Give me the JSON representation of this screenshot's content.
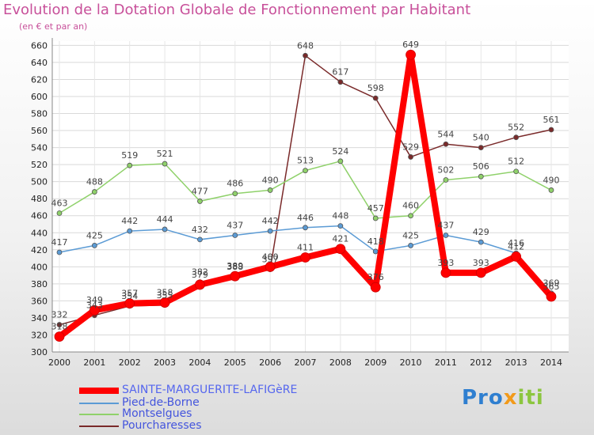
{
  "chart_data": {
    "type": "line",
    "title": "Evolution de la Dotation Globale de Fonctionnement par Habitant",
    "subtitle": "(en € et par an)",
    "x": [
      "2000",
      "2001",
      "2002",
      "2003",
      "2004",
      "2005",
      "2006",
      "2007",
      "2008",
      "2009",
      "2010",
      "2011",
      "2012",
      "2013",
      "2014"
    ],
    "yticks": [
      300,
      320,
      340,
      360,
      380,
      400,
      420,
      440,
      460,
      480,
      500,
      520,
      540,
      560,
      580,
      600,
      620,
      640,
      660
    ],
    "ylim": [
      300,
      665
    ],
    "grid": true,
    "legend_position": "bottom-left",
    "series": [
      {
        "name": "SAINTE-MARGUERITE-LAFIGèRE",
        "color": "#ff0000",
        "values": [
          318,
          349,
          357,
          358,
          379,
          389,
          400,
          411,
          421,
          376,
          649,
          393,
          393,
          412,
          365
        ],
        "labels": [
          "318",
          "349",
          "357",
          "358",
          "379",
          "389",
          "400",
          "411",
          "421",
          "376",
          "649",
          "393",
          "393",
          "412",
          "365"
        ]
      },
      {
        "name": "Pied-de-Borne",
        "color": "#5b9bd5",
        "values": [
          417,
          425,
          442,
          444,
          432,
          437,
          442,
          446,
          448,
          418,
          425,
          437,
          429,
          416,
          369
        ],
        "labels": [
          "417",
          "425",
          "442",
          "444",
          "432",
          "437",
          "442",
          "446",
          "448",
          "418",
          "425",
          "437",
          "429",
          "416",
          "369"
        ]
      },
      {
        "name": "Montselgues",
        "color": "#8fd16a",
        "values": [
          463,
          488,
          519,
          521,
          477,
          486,
          490,
          513,
          524,
          457,
          460,
          502,
          506,
          512,
          490
        ],
        "labels": [
          "463",
          "488",
          "519",
          "521",
          "477",
          "486",
          "490",
          "513",
          "524",
          "457",
          "460",
          "502",
          "506",
          "512",
          "490"
        ]
      },
      {
        "name": "Pourcharesses",
        "color": "#7a2a2a",
        "values": [
          332,
          343,
          354,
          355,
          382,
          388,
          397,
          648,
          617,
          598,
          529,
          544,
          540,
          552,
          561
        ],
        "labels": [
          "332",
          "343",
          "354",
          "355",
          "382",
          "388",
          "397",
          "648",
          "617",
          "598",
          "529",
          "544",
          "540",
          "552",
          "561"
        ]
      }
    ]
  },
  "logo": {
    "part1": "Pro",
    "part2": "x",
    "part3": "iti"
  }
}
